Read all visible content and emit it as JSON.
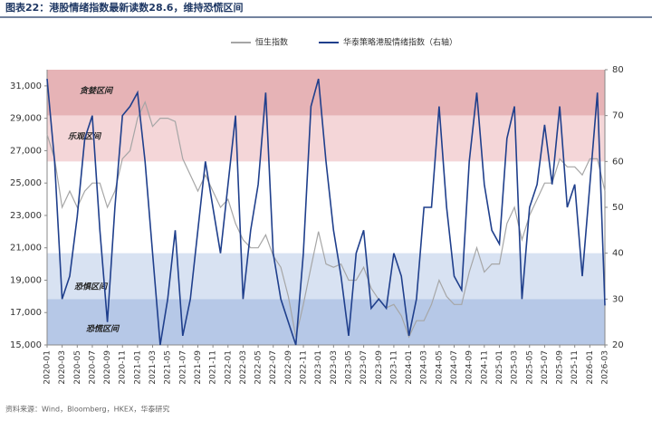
{
  "chart_data": {
    "type": "line",
    "title": "图表22：港股情绪指数最新读数28.6，维持恐慌区间",
    "source": "资料来源：Wind，Bloomberg，HKEX，华泰研究",
    "categories": [
      "2020-01",
      null,
      "2020-03",
      null,
      "2020-05",
      null,
      "2020-07",
      null,
      "2020-09",
      null,
      "2020-11",
      null,
      "2021-01",
      null,
      "2021-03",
      null,
      "2021-05",
      null,
      "2021-07",
      null,
      "2021-09",
      null,
      "2021-11",
      null,
      "2022-01",
      null,
      "2022-03",
      null,
      "2022-05",
      null,
      "2022-07",
      null,
      "2022-09",
      null,
      "2022-11",
      null,
      "2023-01",
      null,
      "2023-03",
      null,
      "2023-05",
      null,
      "2023-07",
      null,
      "2023-09",
      null,
      "2023-11",
      null,
      "2024-01",
      null,
      "2024-03",
      null,
      "2024-05",
      null,
      "2024-07",
      null,
      "2024-09",
      null,
      "2024-11",
      null,
      "2025-01",
      null,
      "2025-03",
      null,
      "2025-05",
      null,
      "2025-07",
      null,
      "2025-09",
      null,
      "2025-11",
      null,
      "2026-01",
      null,
      "2026-03"
    ],
    "series": [
      {
        "name": "恒生指数",
        "color": "#a6a6a6",
        "axis": "y",
        "values": [
          28000,
          26500,
          23500,
          24500,
          23500,
          24500,
          25000,
          25000,
          23500,
          24500,
          26500,
          27000,
          29000,
          30000,
          28500,
          29000,
          29000,
          28800,
          26500,
          25500,
          24500,
          25500,
          24500,
          23500,
          24000,
          22500,
          21500,
          21000,
          21000,
          21800,
          20500,
          19800,
          18000,
          15500,
          17500,
          19800,
          22000,
          20000,
          19800,
          20000,
          19000,
          19000,
          19800,
          18500,
          17800,
          17300,
          17500,
          16800,
          15500,
          16500,
          16500,
          17500,
          19000,
          18000,
          17500,
          17500,
          19500,
          21000,
          19500,
          20000,
          20000,
          22500,
          23500,
          21500,
          23000,
          24000,
          25000,
          25000,
          26500,
          26000,
          26000,
          25500,
          26500,
          26500,
          24500
        ]
      },
      {
        "name": "华泰策略港股情绪指数（右轴）",
        "color": "#1f3f8c",
        "axis": "y2",
        "values": [
          78,
          60,
          30,
          35,
          48,
          65,
          70,
          45,
          25,
          50,
          70,
          72,
          75,
          60,
          40,
          20,
          30,
          45,
          22,
          30,
          45,
          60,
          50,
          40,
          55,
          70,
          30,
          45,
          55,
          75,
          40,
          30,
          25,
          20,
          40,
          72,
          78,
          60,
          45,
          35,
          22,
          40,
          45,
          28,
          30,
          28,
          40,
          35,
          22,
          30,
          50,
          50,
          72,
          50,
          35,
          32,
          60,
          75,
          55,
          45,
          42,
          65,
          72,
          30,
          50,
          55,
          68,
          55,
          72,
          50,
          55,
          35,
          55,
          75,
          28.6
        ]
      }
    ],
    "bands": [
      {
        "label": "贪婪区间",
        "from": 70,
        "to": 80,
        "color": "#e6b3b6"
      },
      {
        "label": "乐观区间",
        "from": 60,
        "to": 70,
        "color": "#f4d6d8"
      },
      {
        "label": "恐惧区间",
        "from": 30,
        "to": 40,
        "color": "#d8e2f2"
      },
      {
        "label": "恐慌区间",
        "from": 20,
        "to": 30,
        "color": "#b6c8e7"
      }
    ],
    "ylim": [
      15000,
      32000
    ],
    "yticks": [
      {
        "value": 15000,
        "label": "15,000"
      },
      {
        "value": 17000,
        "label": "17,000"
      },
      {
        "value": 19000,
        "label": "19,000"
      },
      {
        "value": 21000,
        "label": "21,000"
      },
      {
        "value": 23000,
        "label": "23,000"
      },
      {
        "value": 25000,
        "label": "25,000"
      },
      {
        "value": 27000,
        "label": "27,000"
      },
      {
        "value": 29000,
        "label": "29,000"
      },
      {
        "value": 31000,
        "label": "31,000"
      }
    ],
    "y2lim": [
      20,
      80
    ],
    "y2ticks": [
      20,
      30,
      40,
      50,
      60,
      70,
      80
    ]
  }
}
